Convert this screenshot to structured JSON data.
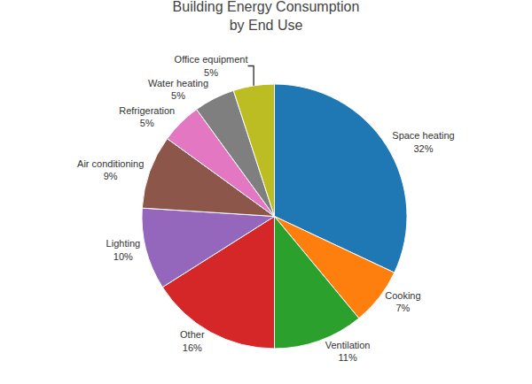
{
  "chart_data": {
    "type": "pie",
    "title": "Building Energy Consumption\nby End Use",
    "categories": [
      "Space heating",
      "Cooking",
      "Ventilation",
      "Other",
      "Lighting",
      "Air conditioning",
      "Refrigeration",
      "Water heating",
      "Office equipment"
    ],
    "values": [
      32,
      7,
      11,
      16,
      10,
      9,
      5,
      5,
      5
    ],
    "value_labels": [
      "32%",
      "7%",
      "11%",
      "16%",
      "10%",
      "9%",
      "5%",
      "5%",
      "5%"
    ],
    "data_labels": true,
    "legend": false
  }
}
